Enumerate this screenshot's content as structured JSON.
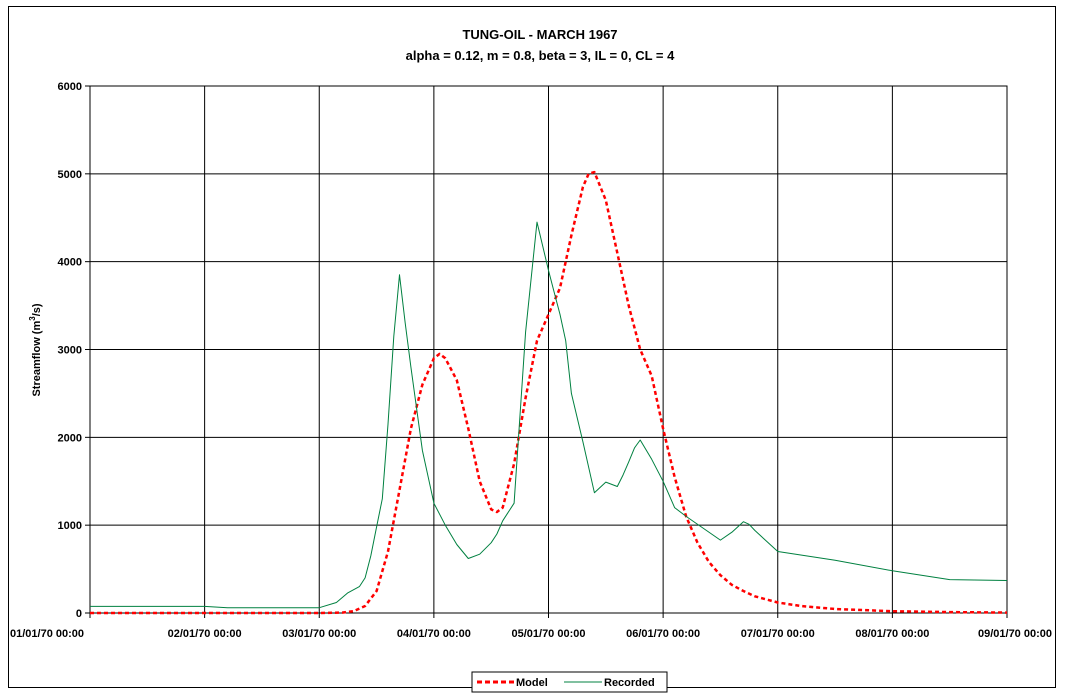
{
  "chart_data": {
    "type": "line",
    "title": "TUNG-OIL - MARCH 1967",
    "subtitle": "alpha = 0.12, m = 0.8, beta = 3, IL = 0, CL = 4",
    "ylabel_main": "Streamflow (m",
    "ylabel_sup": "3",
    "ylabel_tail": "/s)",
    "ylim": [
      0,
      6000
    ],
    "yticks": [
      "0",
      "1000",
      "2000",
      "3000",
      "4000",
      "5000",
      "6000"
    ],
    "xlim": [
      0,
      8
    ],
    "xticks": [
      "01/01/70 00:00",
      "02/01/70 00:00",
      "03/01/70 00:00",
      "04/01/70 00:00",
      "05/01/70 00:00",
      "06/01/70 00:00",
      "07/01/70 00:00",
      "08/01/70 00:00",
      "09/01/70 00:00"
    ],
    "grid": true,
    "legend_position": "bottom",
    "series": [
      {
        "name": "Model",
        "color": "#ff0000",
        "style": "dashed",
        "x": [
          0,
          2.0,
          2.2,
          2.3,
          2.4,
          2.5,
          2.6,
          2.7,
          2.8,
          2.9,
          3.0,
          3.05,
          3.1,
          3.2,
          3.3,
          3.4,
          3.5,
          3.55,
          3.6,
          3.7,
          3.8,
          3.9,
          4.0,
          4.1,
          4.2,
          4.3,
          4.35,
          4.4,
          4.5,
          4.6,
          4.7,
          4.8,
          4.9,
          5.0,
          5.1,
          5.2,
          5.3,
          5.4,
          5.5,
          5.6,
          5.7,
          5.8,
          6.0,
          6.2,
          6.5,
          7.0,
          7.5,
          8.0
        ],
        "y": [
          0,
          0,
          5,
          20,
          80,
          250,
          700,
          1400,
          2100,
          2600,
          2900,
          2950,
          2900,
          2650,
          2100,
          1500,
          1180,
          1150,
          1200,
          1700,
          2450,
          3100,
          3400,
          3700,
          4300,
          4850,
          5000,
          5020,
          4700,
          4100,
          3500,
          3000,
          2700,
          2100,
          1550,
          1100,
          800,
          580,
          430,
          320,
          250,
          190,
          120,
          80,
          45,
          20,
          10,
          5
        ]
      },
      {
        "name": "Recorded",
        "color": "#008040",
        "style": "solid",
        "x": [
          0,
          1.0,
          1.2,
          2.0,
          2.15,
          2.25,
          2.35,
          2.4,
          2.45,
          2.5,
          2.55,
          2.6,
          2.65,
          2.7,
          2.75,
          2.8,
          2.9,
          3.0,
          3.1,
          3.2,
          3.3,
          3.4,
          3.5,
          3.55,
          3.6,
          3.7,
          3.8,
          3.9,
          4.0,
          4.05,
          4.1,
          4.15,
          4.2,
          4.3,
          4.4,
          4.5,
          4.6,
          4.65,
          4.7,
          4.75,
          4.8,
          4.9,
          5.0,
          5.05,
          5.1,
          5.2,
          5.5,
          5.6,
          5.7,
          5.75,
          5.8,
          5.9,
          6.0,
          6.5,
          7.0,
          7.5,
          8.0
        ],
        "y": [
          75,
          75,
          60,
          60,
          120,
          230,
          300,
          400,
          650,
          980,
          1300,
          2150,
          3150,
          3850,
          3300,
          2800,
          1850,
          1250,
          1000,
          780,
          620,
          670,
          800,
          900,
          1050,
          1250,
          3200,
          4450,
          3900,
          3650,
          3400,
          3100,
          2500,
          1950,
          1370,
          1490,
          1440,
          1570,
          1720,
          1880,
          1970,
          1750,
          1500,
          1350,
          1200,
          1100,
          830,
          920,
          1040,
          1010,
          940,
          820,
          700,
          600,
          480,
          380,
          370
        ]
      }
    ]
  }
}
